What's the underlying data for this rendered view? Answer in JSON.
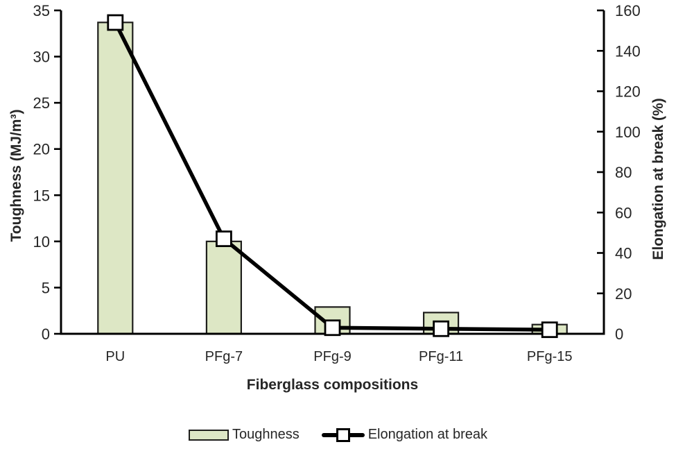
{
  "legend": {
    "items": [
      {
        "label": "Toughness",
        "swatch": "bar-swatch"
      },
      {
        "label": "Elongation at break",
        "swatch": "line-marker-swatch"
      }
    ]
  },
  "colors": {
    "background": "#ffffff",
    "bar_fill": "#dde7c5",
    "bar_border": "#1e1e1c",
    "line": "#000000",
    "marker_fill": "#ffffff",
    "marker_border": "#000000",
    "axis": "#000000",
    "text": "#262626"
  },
  "chart_data": {
    "type": "bar",
    "subtype": "combo-bar-line-dual-axis",
    "title": "",
    "xlabel": "Fiberglass compositions",
    "ylabel_left": "Toughness (MJ/m³)",
    "ylabel_right": "Elongation at break (%)",
    "categories": [
      "PU",
      "PFg-7",
      "PFg-9",
      "PFg-11",
      "PFg-15"
    ],
    "series": [
      {
        "name": "Toughness",
        "kind": "bar",
        "axis": "left",
        "values": [
          33.7,
          10,
          2.9,
          2.3,
          1.0
        ]
      },
      {
        "name": "Elongation at break",
        "kind": "line",
        "axis": "right",
        "values": [
          154,
          47,
          3,
          2.5,
          2
        ]
      }
    ],
    "left_axis": {
      "min": 0,
      "max": 35,
      "step": 5
    },
    "right_axis": {
      "min": 0,
      "max": 160,
      "step": 20
    },
    "grid": false,
    "legend_position": "bottom"
  }
}
